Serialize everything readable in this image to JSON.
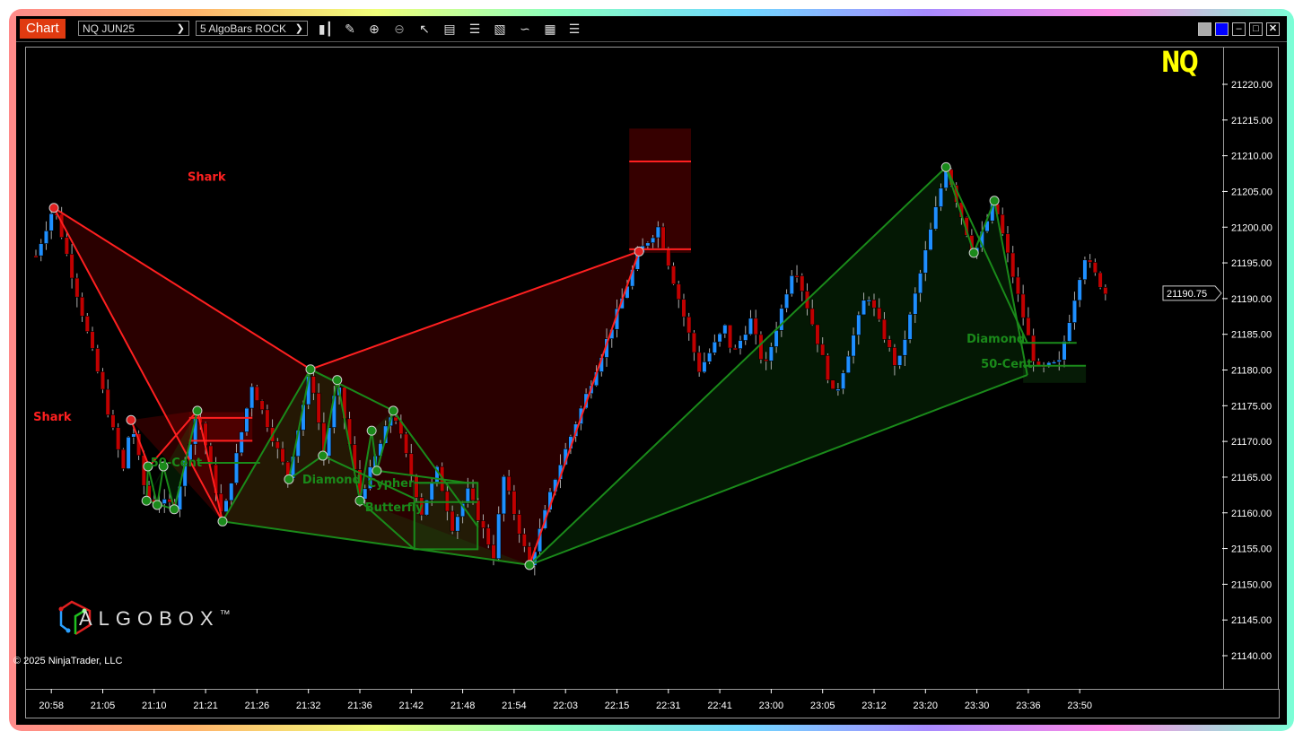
{
  "window": {
    "tab_label": "Chart",
    "instrument": "NQ JUN25",
    "bar_type": "5 AlgoBars ROCK",
    "toolbar_icons": [
      "chart-style-icon",
      "drawing-tools-icon",
      "zoom-in-icon",
      "zoom-out-icon",
      "pointer-icon",
      "data-box-icon",
      "bar-marker-icon",
      "chart-trader-icon",
      "indicators-icon",
      "strategies-icon",
      "properties-list-icon"
    ],
    "window_buttons": [
      "grey-color-button",
      "blue-color-button",
      "minimize-button",
      "maximize-button",
      "close-button"
    ]
  },
  "symbol_watermark": "NQ",
  "logo_text": "ALGOBOX",
  "logo_tm": "™",
  "copyright": "© 2025 NinjaTrader, LLC",
  "colors": {
    "up": "#1e8fff",
    "down": "#c00000",
    "bullish_pattern": "#1a8a1a",
    "bearish_pattern": "#ff2020",
    "watermark": "#ffff00",
    "tab": "#e03a10"
  },
  "chart_data": {
    "type": "candlestick",
    "title": "",
    "ylim": [
      21137,
      21227
    ],
    "y_ticks": [
      21140,
      21145,
      21150,
      21155,
      21160,
      21165,
      21170,
      21175,
      21180,
      21185,
      21190,
      21195,
      21200,
      21205,
      21210,
      21215,
      21220
    ],
    "y_tick_labels": [
      "21140.00",
      "21145.00",
      "21150.00",
      "21155.00",
      "21160.00",
      "21165.00",
      "21170.00",
      "21175.00",
      "21180.00",
      "21185.00",
      "21190.00",
      "21195.00",
      "21200.00",
      "21205.00",
      "21210.00",
      "21215.00",
      "21220.00"
    ],
    "last_price": 21190.75,
    "last_price_label": "21190.75",
    "x_ticks": [
      {
        "bar": 3,
        "label": "20:58"
      },
      {
        "bar": 13,
        "label": "21:05"
      },
      {
        "bar": 23,
        "label": "21:10"
      },
      {
        "bar": 33,
        "label": "21:21"
      },
      {
        "bar": 43,
        "label": "21:26"
      },
      {
        "bar": 53,
        "label": "21:32"
      },
      {
        "bar": 63,
        "label": "21:36"
      },
      {
        "bar": 73,
        "label": "21:42"
      },
      {
        "bar": 83,
        "label": "21:48"
      },
      {
        "bar": 93,
        "label": "21:54"
      },
      {
        "bar": 103,
        "label": "22:03"
      },
      {
        "bar": 113,
        "label": "22:15"
      },
      {
        "bar": 123,
        "label": "22:31"
      },
      {
        "bar": 133,
        "label": "22:41"
      },
      {
        "bar": 143,
        "label": "23:00"
      },
      {
        "bar": 153,
        "label": "23:05"
      },
      {
        "bar": 163,
        "label": "23:12"
      },
      {
        "bar": 173,
        "label": "23:20"
      },
      {
        "bar": 183,
        "label": "23:30"
      },
      {
        "bar": 193,
        "label": "23:36"
      },
      {
        "bar": 203,
        "label": "23:50"
      }
    ],
    "price_swings": [
      [
        0,
        21196
      ],
      [
        3.5,
        21203
      ],
      [
        17,
        21166
      ],
      [
        18.5,
        21173
      ],
      [
        21.5,
        21162
      ],
      [
        27,
        21161
      ],
      [
        31.4,
        21174.5
      ],
      [
        36.3,
        21159
      ],
      [
        42,
        21178
      ],
      [
        49,
        21165
      ],
      [
        53.4,
        21180
      ],
      [
        56,
        21168
      ],
      [
        58.6,
        21178.5
      ],
      [
        63,
        21162
      ],
      [
        69.5,
        21174.5
      ],
      [
        75,
        21160
      ],
      [
        78,
        21166
      ],
      [
        81,
        21158
      ],
      [
        84,
        21163
      ],
      [
        89,
        21154
      ],
      [
        91,
        21165
      ],
      [
        96,
        21152.5
      ],
      [
        101,
        21165
      ],
      [
        113,
        21188
      ],
      [
        117.3,
        21196.5
      ],
      [
        121,
        21200
      ],
      [
        129,
        21180
      ],
      [
        134,
        21186
      ],
      [
        135.5,
        21182
      ],
      [
        139,
        21187
      ],
      [
        141.7,
        21180
      ],
      [
        147.5,
        21195
      ],
      [
        155.3,
        21176
      ],
      [
        161.6,
        21191
      ],
      [
        167.5,
        21180
      ],
      [
        177,
        21208.5
      ],
      [
        182.4,
        21196
      ],
      [
        186.4,
        21203.5
      ],
      [
        194.6,
        21180
      ],
      [
        199,
        21181
      ],
      [
        203.9,
        21196
      ],
      [
        208,
        21190.75
      ]
    ],
    "patterns": [
      {
        "name": "Shark",
        "color": "bearish",
        "label": "Shark",
        "label_at": [
          29.5,
          21206.5
        ],
        "fill": [
          [
            3.5,
            21202.7
          ],
          [
            53.4,
            21180.1
          ],
          [
            117.3,
            21196.6
          ],
          [
            96,
            21152.7
          ],
          [
            36.3,
            21158.8
          ]
        ],
        "lines": [
          [
            [
              3.5,
              21202.7
            ],
            [
              53.4,
              21180.1
            ]
          ],
          [
            [
              3.5,
              21202.7
            ],
            [
              36.3,
              21158.8
            ]
          ],
          [
            [
              53.4,
              21180.1
            ],
            [
              117.3,
              21196.6
            ]
          ],
          [
            [
              96,
              21152.7
            ],
            [
              117.3,
              21196.6
            ]
          ]
        ],
        "pivots": [
          [
            3.5,
            21202.7
          ],
          [
            117.3,
            21196.6
          ]
        ],
        "box": [
          [
            115.4,
            21213.8
          ],
          [
            127.4,
            21196.4
          ]
        ],
        "box_lines": [
          21209.2,
          21196.9
        ]
      },
      {
        "name": "Shark",
        "color": "bearish",
        "label": "Shark",
        "label_at": [
          -0.5,
          21172.9
        ],
        "fill": [
          [
            18.5,
            21173
          ],
          [
            31.4,
            21174.3
          ],
          [
            36.3,
            21158.8
          ]
        ],
        "lines": [
          [
            [
              18.5,
              21173
            ],
            [
              22,
              21166.5
            ]
          ],
          [
            [
              22,
              21166.5
            ],
            [
              31.4,
              21174.3
            ]
          ],
          [
            [
              31.4,
              21174.3
            ],
            [
              36.3,
              21158.8
            ]
          ]
        ],
        "pivots": [
          [
            18.5,
            21173
          ]
        ],
        "box": [
          [
            29.8,
            21174.1
          ],
          [
            42.1,
            21169.9
          ]
        ],
        "box_lines": [
          21173.3,
          21170.1
        ]
      },
      {
        "name": "50-Cent",
        "color": "bullish",
        "label": "50-Cent",
        "label_at": [
          22.3,
          21166.5
        ],
        "fill": [
          [
            21.5,
            21161.7
          ],
          [
            24.8,
            21166.5
          ],
          [
            26.9,
            21160.5
          ],
          [
            31.4,
            21174.3
          ]
        ],
        "lines": [
          [
            [
              21.5,
              21161.7
            ],
            [
              21.8,
              21166.5
            ]
          ],
          [
            [
              21.8,
              21166.5
            ],
            [
              23.6,
              21161.1
            ]
          ],
          [
            [
              23.6,
              21161.1
            ],
            [
              24.8,
              21166.5
            ]
          ],
          [
            [
              24.8,
              21166.5
            ],
            [
              26.9,
              21160.5
            ]
          ],
          [
            [
              26.9,
              21160.5
            ],
            [
              31.4,
              21174.3
            ]
          ],
          [
            [
              21.5,
              21161.7
            ],
            [
              26.9,
              21160.5
            ]
          ]
        ],
        "pivots": [
          [
            21.5,
            21161.7
          ],
          [
            21.8,
            21166.5
          ],
          [
            23.6,
            21161.1
          ],
          [
            24.8,
            21166.5
          ],
          [
            26.9,
            21160.5
          ],
          [
            31.4,
            21174.3
          ]
        ],
        "hline": [
          [
            31.4,
            21167
          ],
          [
            43.6,
            21167
          ]
        ]
      },
      {
        "name": "Diamond",
        "color": "bullish",
        "label": "Diamond",
        "label_at": [
          51.8,
          21164.1
        ],
        "fill": [
          [
            36.3,
            21158.8
          ],
          [
            53.4,
            21180.1
          ],
          [
            58.6,
            21178.6
          ],
          [
            63,
            21161.7
          ],
          [
            96,
            21152.7
          ]
        ],
        "lines": [
          [
            [
              36.3,
              21158.8
            ],
            [
              53.4,
              21180.1
            ]
          ],
          [
            [
              53.4,
              21180.1
            ],
            [
              49.2,
              21164.7
            ]
          ],
          [
            [
              49.2,
              21164.7
            ],
            [
              55.8,
              21168
            ]
          ],
          [
            [
              55.8,
              21168
            ],
            [
              58.6,
              21178.6
            ]
          ],
          [
            [
              58.6,
              21178.6
            ],
            [
              63,
              21161.7
            ]
          ],
          [
            [
              53.4,
              21180.1
            ],
            [
              69.5,
              21174.3
            ]
          ],
          [
            [
              36.3,
              21158.8
            ],
            [
              96,
              21152.7
            ]
          ],
          [
            [
              55.8,
              21168
            ],
            [
              73.6,
              21162
            ]
          ]
        ],
        "pivots": [
          [
            36.3,
            21158.8
          ],
          [
            49.2,
            21164.7
          ],
          [
            53.4,
            21180.1
          ],
          [
            55.8,
            21168
          ],
          [
            58.6,
            21178.6
          ],
          [
            96,
            21152.7
          ]
        ]
      },
      {
        "name": "Cypher",
        "color": "bullish",
        "label": "Cypher",
        "label_at": [
          64.5,
          21163.6
        ],
        "fill": [
          [
            63,
            21161.7
          ],
          [
            65.3,
            21171.5
          ],
          [
            69.5,
            21174.3
          ],
          [
            66.3,
            21165.9
          ]
        ],
        "lines": [
          [
            [
              63,
              21161.7
            ],
            [
              65.3,
              21171.5
            ]
          ],
          [
            [
              65.3,
              21171.5
            ],
            [
              66.3,
              21165.9
            ]
          ],
          [
            [
              66.3,
              21165.9
            ],
            [
              69.5,
              21174.3
            ]
          ],
          [
            [
              69.5,
              21174.3
            ],
            [
              86,
              21158
            ]
          ],
          [
            [
              66.3,
              21165.9
            ],
            [
              84,
              21164.2
            ]
          ]
        ],
        "pivots": [
          [
            63,
            21161.7
          ],
          [
            65.3,
            21171.5
          ],
          [
            66.3,
            21165.9
          ],
          [
            69.5,
            21174.3
          ]
        ]
      },
      {
        "name": "Butterfly",
        "color": "bullish",
        "label": "Butterfly",
        "label_at": [
          64,
          21160.2
        ],
        "fill": [],
        "lines": [
          [
            [
              63,
              21161.7
            ],
            [
              73.6,
              21154.9
            ]
          ]
        ],
        "pivots": [],
        "box": [
          [
            73.6,
            21164.2
          ],
          [
            85.9,
            21154.9
          ]
        ],
        "box_lines": [
          21164.2,
          21161.5
        ]
      },
      {
        "name": "Diamond",
        "color": "bullish",
        "label": "Diamond",
        "label_at": [
          181,
          21183.8
        ],
        "fill": [
          [
            96,
            21152.7
          ],
          [
            177,
            21208.4
          ],
          [
            182.4,
            21196.4
          ],
          [
            186.4,
            21203.7
          ],
          [
            192.8,
            21179.3
          ]
        ],
        "lines": [
          [
            [
              96,
              21152.7
            ],
            [
              177,
              21208.4
            ]
          ],
          [
            [
              177,
              21208.4
            ],
            [
              182.4,
              21196.4
            ]
          ],
          [
            [
              182.4,
              21196.4
            ],
            [
              186.4,
              21203.7
            ]
          ],
          [
            [
              186.4,
              21203.7
            ],
            [
              192.8,
              21179.3
            ]
          ],
          [
            [
              96,
              21152.7
            ],
            [
              192.8,
              21179.3
            ]
          ],
          [
            [
              177,
              21208.4
            ],
            [
              192.8,
              21183.8
            ]
          ]
        ],
        "pivots": [
          [
            96,
            21152.7
          ],
          [
            177,
            21208.4
          ],
          [
            182.4,
            21196.4
          ],
          [
            186.4,
            21203.7
          ]
        ],
        "hline": [
          [
            191.3,
            21183.8
          ],
          [
            202.4,
            21183.8
          ]
        ]
      },
      {
        "name": "50-Cent",
        "color": "bullish",
        "label": "50-Cent",
        "label_at": [
          183.8,
          21180.3
        ],
        "fill": [],
        "lines": [],
        "pivots": [],
        "box": [
          [
            192,
            21180.6
          ],
          [
            204.2,
            21178.2
          ]
        ],
        "box_lines": [
          21180.6
        ]
      }
    ]
  }
}
